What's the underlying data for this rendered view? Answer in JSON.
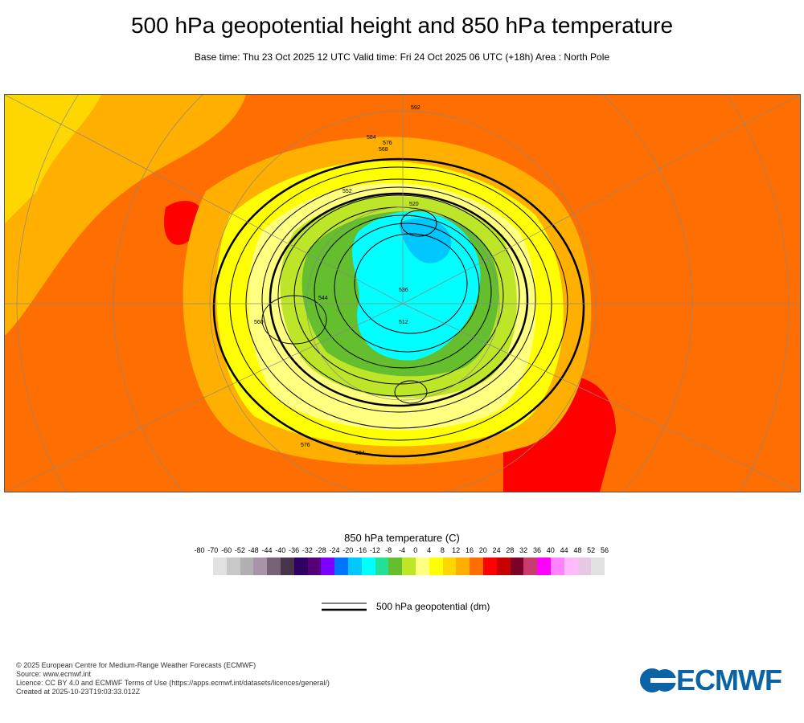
{
  "title": "500 hPa geopotential height and 850 hPa temperature",
  "subtitle": "Base time: Thu 23 Oct 2025 12 UTC Valid time: Fri 24 Oct 2025 06 UTC (+18h) Area : North Pole",
  "map": {
    "contour_labels": [
      "584",
      "576",
      "568",
      "552",
      "536",
      "520",
      "512",
      "544",
      "560",
      "576",
      "584",
      "592"
    ]
  },
  "colorbar": {
    "title": "850 hPa temperature (C)",
    "labels": [
      "-80",
      "-70",
      "-60",
      "-52",
      "-48",
      "-44",
      "-40",
      "-36",
      "-32",
      "-28",
      "-24",
      "-20",
      "-16",
      "-12",
      "-8",
      "-4",
      "0",
      "4",
      "8",
      "12",
      "16",
      "20",
      "24",
      "28",
      "32",
      "36",
      "40",
      "44",
      "48",
      "52",
      "56"
    ],
    "colors": [
      "#e1e1e1",
      "#c8c8c8",
      "#b0b0b0",
      "#a894a8",
      "#776277",
      "#47334a",
      "#2e0063",
      "#560078",
      "#7d00ff",
      "#0074ff",
      "#00c8ff",
      "#00ffff",
      "#23e096",
      "#64be2d",
      "#bee628",
      "#ffff80",
      "#ffff00",
      "#ffd700",
      "#ffaf00",
      "#ff6e00",
      "#ff0000",
      "#c80000",
      "#7d0028",
      "#c83c6e",
      "#ff00ff",
      "#ff82ff",
      "#ffbaff",
      "#e6c8e6",
      "#e1e1e1"
    ]
  },
  "legend": {
    "label": "500 hPa geopotential (dm)"
  },
  "footer": {
    "line1": "© 2025 European Centre for Medium-Range Weather Forecasts (ECMWF)",
    "line2": "Source: www.ecmwf.int",
    "line3": "Licence: CC BY 4.0 and ECMWF Terms of Use (https://apps.ecmwf.int/datasets/licences/general/)",
    "line4": "Created at 2025-10-23T19:03:33.012Z"
  },
  "logo": {
    "text": "ECMWF",
    "color": "#0b62a4"
  }
}
